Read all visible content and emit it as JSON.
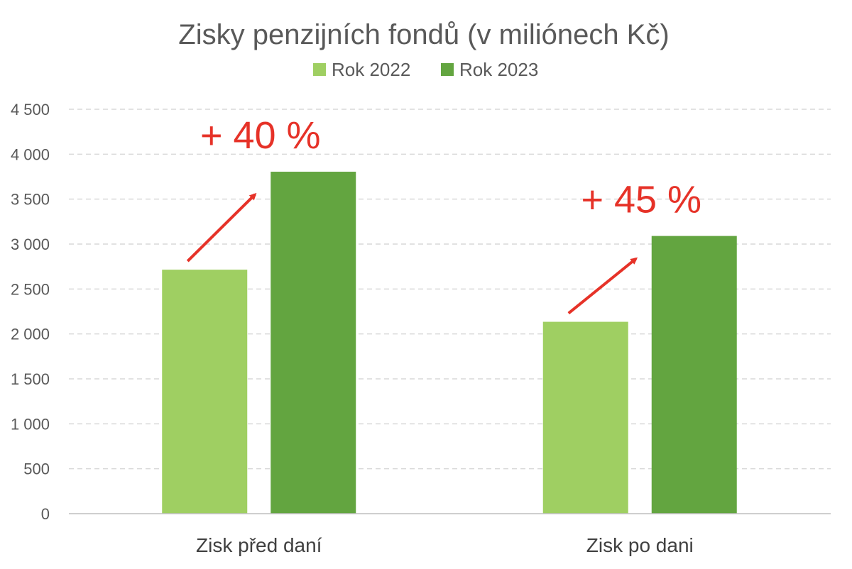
{
  "chart_data": {
    "type": "bar",
    "title": "Zisky penzijních fondů (v miliónech Kč)",
    "categories": [
      "Zisk před daní",
      "Zisk po dani"
    ],
    "series": [
      {
        "name": "Rok 2022",
        "color": "#9fcf62",
        "values": [
          2715,
          2135
        ]
      },
      {
        "name": "Rok 2023",
        "color": "#63a540",
        "values": [
          3805,
          3090
        ]
      }
    ],
    "ylim": [
      0,
      4500
    ],
    "yticks": [
      0,
      500,
      1000,
      1500,
      2000,
      2500,
      3000,
      3500,
      4000,
      4500
    ],
    "ytick_labels": [
      "0",
      "500",
      "1 000",
      "1 500",
      "2 000",
      "2 500",
      "3 000",
      "3 500",
      "4 000",
      "4 500"
    ],
    "grid": true,
    "legend_position": "top",
    "annotations": [
      {
        "category": "Zisk před daní",
        "text": "+ 40 %",
        "color": "#e63228"
      },
      {
        "category": "Zisk po dani",
        "text": "+ 45 %",
        "color": "#e63228"
      }
    ]
  }
}
